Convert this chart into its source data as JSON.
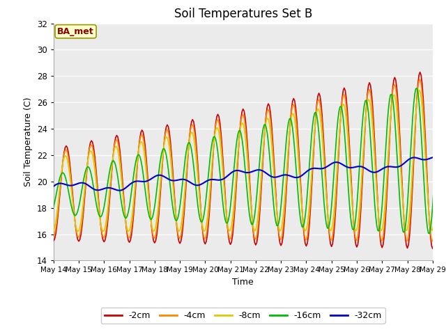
{
  "title": "Soil Temperatures Set B",
  "xlabel": "Time",
  "ylabel": "Soil Temperature (C)",
  "ylim": [
    14,
    32
  ],
  "yticks": [
    14,
    16,
    18,
    20,
    22,
    24,
    26,
    28,
    30,
    32
  ],
  "bg_color": "#ffffff",
  "plot_bg_color": "#ebebeb",
  "grid_color": "#ffffff",
  "series_colors": {
    "-2cm": "#cc0000",
    "-4cm": "#ff8800",
    "-8cm": "#ddcc00",
    "-16cm": "#00bb00",
    "-32cm": "#0000cc"
  },
  "annotation_label": "BA_met",
  "annotation_box_color": "#ffffcc",
  "annotation_border_color": "#999900",
  "days": [
    "May 14",
    "May 15",
    "May 16",
    "May 17",
    "May 18",
    "May 19",
    "May 20",
    "May 21",
    "May 22",
    "May 23",
    "May 24",
    "May 25",
    "May 26",
    "May 27",
    "May 28",
    "May 29"
  ],
  "n_days": 16
}
